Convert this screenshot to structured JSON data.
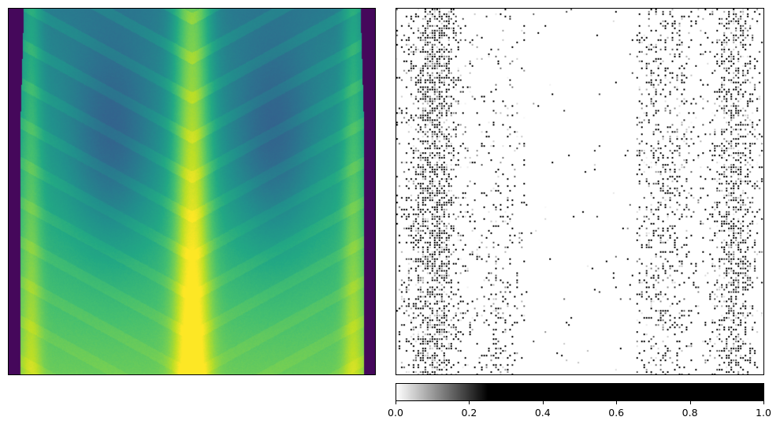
{
  "chart_data": [
    {
      "type": "heatmap",
      "title": "",
      "xlabel": "",
      "ylabel": "",
      "colormap": "viridis",
      "content": "chest x-ray image",
      "axes_ticks": "none"
    },
    {
      "type": "heatmap",
      "title": "",
      "xlabel": "",
      "ylabel": "",
      "colormap": "Greys",
      "content": "attribution map",
      "axes_ticks": "none",
      "colorbar": {
        "orientation": "horizontal",
        "range": [
          0.0,
          1.0
        ],
        "saturation_at": 0.25,
        "ticks": [
          "0.0",
          "0.2",
          "0.4",
          "0.6",
          "0.8",
          "1.0"
        ],
        "tick_values": [
          0.0,
          0.2,
          0.4,
          0.6,
          0.8,
          1.0
        ]
      }
    }
  ]
}
